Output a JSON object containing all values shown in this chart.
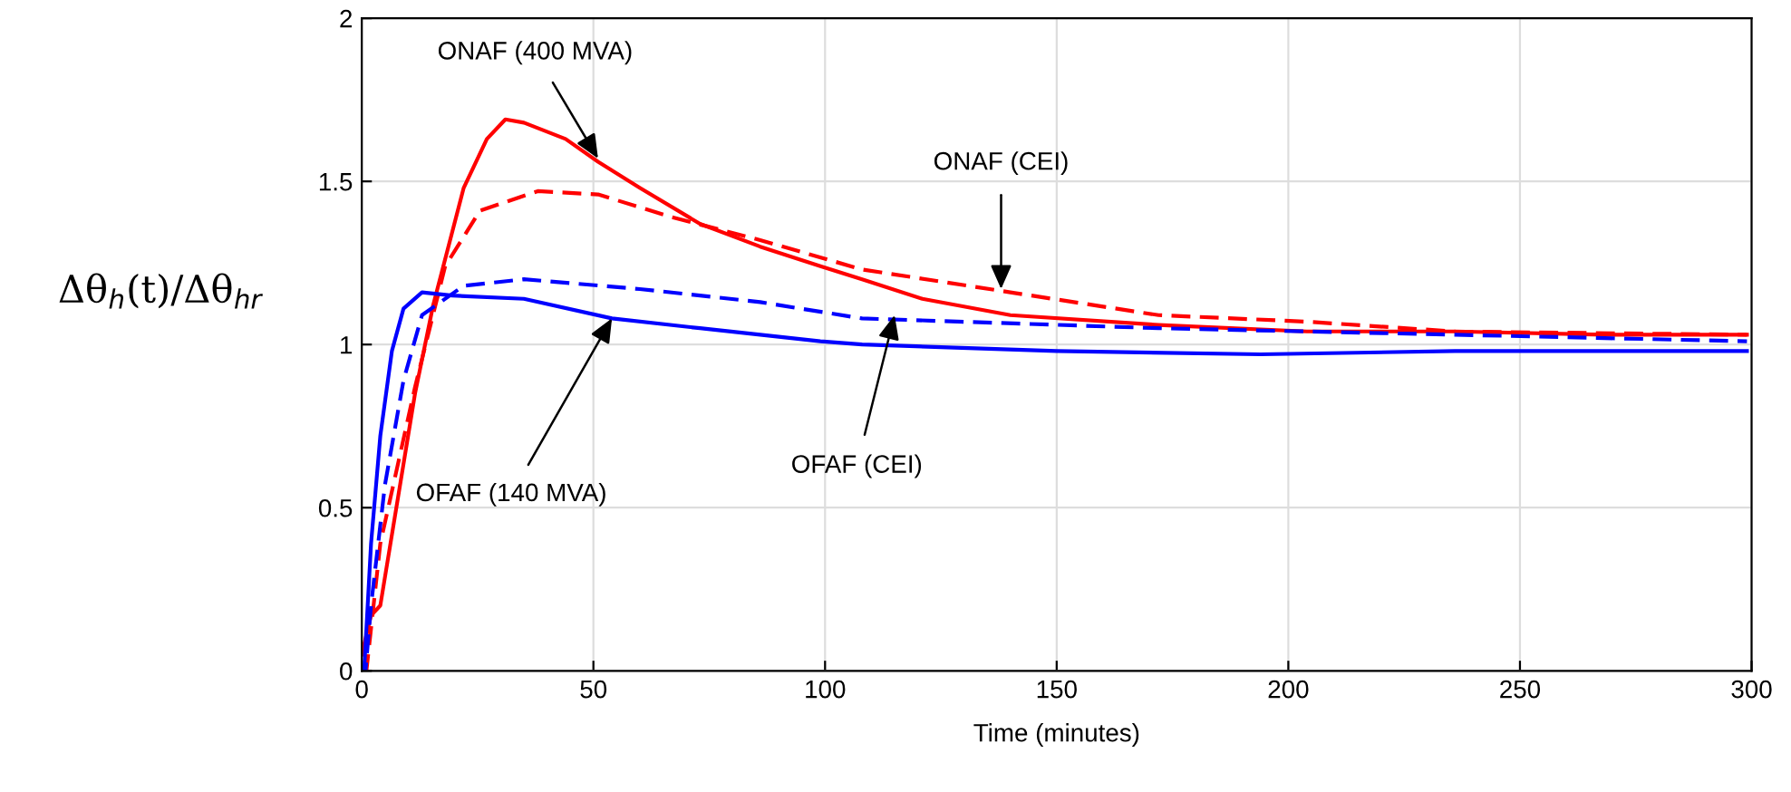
{
  "chart_data": {
    "type": "line",
    "xlabel": "Time (minutes)",
    "ylabel": "Δθ$_{h}$(t)/Δθ$_{hr}$",
    "xlim": [
      0,
      300
    ],
    "ylim": [
      0,
      2
    ],
    "xticks": [
      0,
      50,
      100,
      150,
      200,
      250,
      300
    ],
    "yticks": [
      0,
      0.5,
      1,
      1.5,
      2
    ],
    "grid": true,
    "legend": false,
    "series": [
      {
        "color": "#ff0000",
        "line_style": "solid",
        "x": [
          0,
          2,
          4,
          11.5,
          15.4,
          22,
          27,
          31,
          35,
          44,
          51,
          60,
          73,
          86,
          99,
          108,
          121,
          140,
          172,
          204,
          236,
          268,
          299
        ],
        "values": [
          0.05,
          0.17,
          0.2,
          0.85,
          1.12,
          1.48,
          1.63,
          1.69,
          1.68,
          1.63,
          1.56,
          1.48,
          1.37,
          1.3,
          1.24,
          1.2,
          1.14,
          1.09,
          1.06,
          1.04,
          1.04,
          1.03,
          1.03
        ]
      },
      {
        "color": "#ff0000",
        "line_style": "dashed",
        "x": [
          1,
          4,
          11.5,
          18,
          25.5,
          38,
          51,
          67,
          86,
          108,
          140,
          172,
          204,
          236,
          299
        ],
        "values": [
          0,
          0.39,
          0.87,
          1.24,
          1.41,
          1.47,
          1.46,
          1.39,
          1.32,
          1.23,
          1.16,
          1.09,
          1.07,
          1.04,
          1.03
        ]
      },
      {
        "color": "#0000ff",
        "line_style": "solid",
        "x": [
          0.5,
          2,
          4,
          6.5,
          9,
          13,
          19.5,
          35,
          54,
          73,
          99,
          108,
          150,
          194,
          236,
          299
        ],
        "values": [
          0,
          0.39,
          0.72,
          0.98,
          1.11,
          1.16,
          1.15,
          1.14,
          1.08,
          1.05,
          1.01,
          1.0,
          0.98,
          0.97,
          0.98,
          0.98
        ]
      },
      {
        "color": "#0000ff",
        "line_style": "dashed",
        "x": [
          0.8,
          2,
          5,
          9,
          13,
          22,
          35,
          60,
          86,
          108,
          172,
          236,
          299
        ],
        "values": [
          0,
          0.2,
          0.57,
          0.89,
          1.09,
          1.18,
          1.2,
          1.17,
          1.13,
          1.08,
          1.05,
          1.03,
          1.01
        ]
      }
    ],
    "annotations": [
      {
        "text": "ONAF (400 MVA)",
        "x": 51,
        "y": 1.57
      },
      {
        "text": "ONAF (CEI)",
        "x": 138,
        "y": 1.17
      },
      {
        "text": "OFAF (140 MVA)",
        "x": 54,
        "y": 1.08
      },
      {
        "text": "OFAF (CEI)",
        "x": 115,
        "y": 1.09
      }
    ]
  }
}
